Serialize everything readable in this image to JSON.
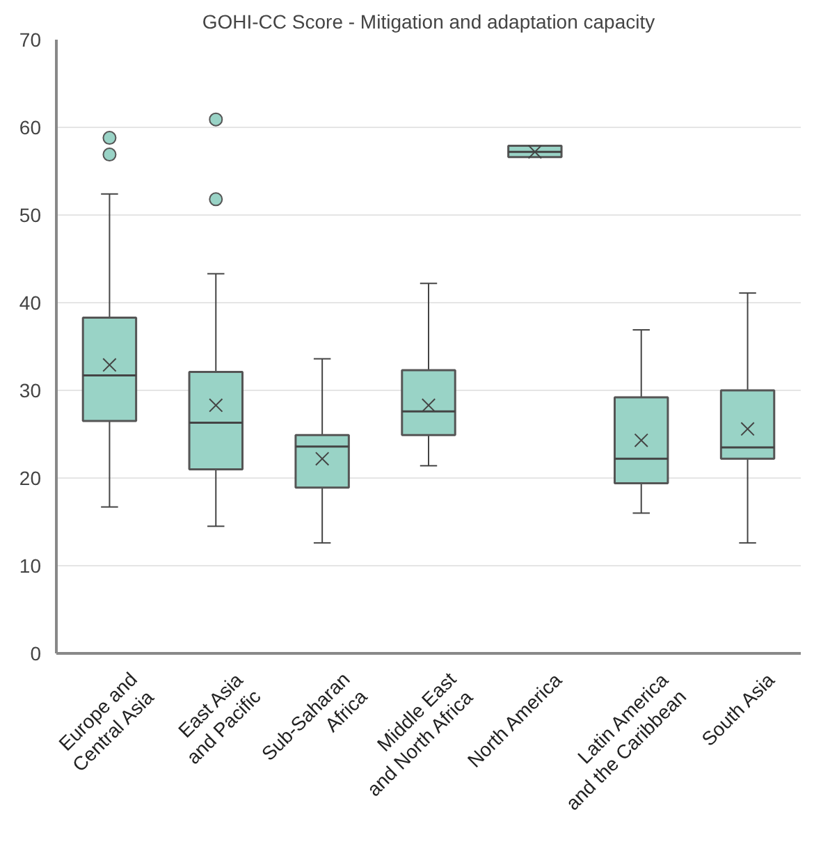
{
  "chart_data": {
    "type": "box",
    "title": "GOHI-CC Score - Mitigation and adaptation capacity",
    "categories": [
      "Europe and\nCentral Asia",
      "East Asia\nand Pacific",
      "Sub-Saharan\nAfrica",
      "Middle East\nand North Africa",
      "North America",
      "Latin America\nand the Caribbean",
      "South Asia"
    ],
    "color": "#99d3c6",
    "boxes": [
      {
        "low": 16.7,
        "q1": 26.5,
        "median": 31.7,
        "q3": 38.3,
        "high": 52.4,
        "mean": 32.9,
        "outliers": [
          58.8,
          56.9
        ]
      },
      {
        "low": 14.5,
        "q1": 21.0,
        "median": 26.3,
        "q3": 32.1,
        "high": 43.3,
        "mean": 28.3,
        "outliers": [
          60.9,
          51.8
        ]
      },
      {
        "low": 12.6,
        "q1": 18.9,
        "median": 23.6,
        "q3": 24.9,
        "high": 33.6,
        "mean": 22.2
      },
      {
        "low": 21.4,
        "q1": 24.9,
        "median": 27.6,
        "q3": 32.3,
        "high": 42.2,
        "mean": 28.3
      },
      {
        "low": 56.6,
        "q1": 56.6,
        "median": 57.2,
        "q3": 57.9,
        "high": 57.9,
        "mean": 57.2
      },
      {
        "low": 16.0,
        "q1": 19.4,
        "median": 22.2,
        "q3": 29.2,
        "high": 36.9,
        "mean": 24.3
      },
      {
        "low": 12.6,
        "q1": 22.2,
        "median": 23.5,
        "q3": 30.0,
        "high": 41.1,
        "mean": 25.6
      }
    ],
    "ylim": [
      0,
      70
    ],
    "yticks": [
      0,
      10,
      20,
      30,
      40,
      50,
      60,
      70
    ],
    "grid": "y"
  }
}
